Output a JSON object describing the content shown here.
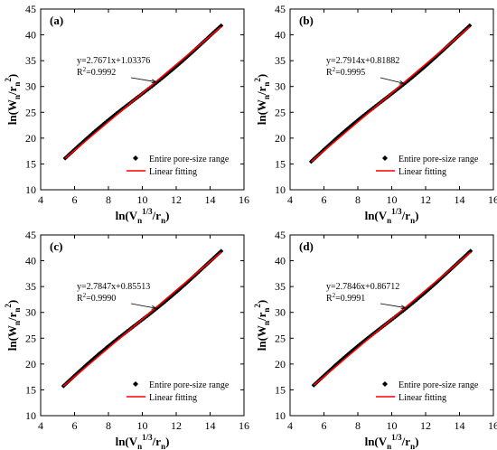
{
  "colors": {
    "fit_line": "#ff0000",
    "data_marker": "#000000",
    "axis": "#000000"
  },
  "chart_data": [
    {
      "type": "scatter",
      "panel_label": "(a)",
      "xlabel_main": "ln(V",
      "xlabel_sub": "n",
      "xlabel_sup": "1/3",
      "xlabel_tail": "/r",
      "xlabel_sub2": "n",
      "xlabel_end": ")",
      "ylabel_main": "ln(W",
      "ylabel_sub": "n",
      "ylabel_mid": "/r",
      "ylabel_sub2": "n",
      "ylabel_sup": "2",
      "ylabel_end": ")",
      "xlim": [
        4,
        16
      ],
      "ylim": [
        10,
        45
      ],
      "x_ticks": [
        4,
        6,
        8,
        10,
        12,
        14,
        16
      ],
      "y_ticks": [
        10,
        15,
        20,
        25,
        30,
        35,
        40,
        45
      ],
      "x_range": [
        5.45,
        14.65
      ],
      "slope": 2.7671,
      "intercept": 1.03376,
      "equation": "y=2.7671x+1.03376",
      "r2_prefix": "R",
      "r2_sup": "2",
      "r2_value": "=0.9992",
      "annotation_x": 10.8,
      "annotation_y": 30.9,
      "series": [
        {
          "name": "Entire pore-size range",
          "marker": "diamond"
        },
        {
          "name": "Linear fitting",
          "marker": "line"
        }
      ],
      "legend_position": "bottom-right"
    },
    {
      "type": "scatter",
      "panel_label": "(b)",
      "xlabel_main": "ln(V",
      "xlabel_sub": "n",
      "xlabel_sup": "1/3",
      "xlabel_tail": "/r",
      "xlabel_sub2": "n",
      "xlabel_end": ")",
      "ylabel_main": "ln(W",
      "ylabel_sub": "n",
      "ylabel_mid": "/r",
      "ylabel_sub2": "n",
      "ylabel_sup": "2",
      "ylabel_end": ")",
      "xlim": [
        4,
        16
      ],
      "ylim": [
        10,
        45
      ],
      "x_ticks": [
        4,
        6,
        8,
        10,
        12,
        14,
        16
      ],
      "y_ticks": [
        10,
        15,
        20,
        25,
        30,
        35,
        40,
        45
      ],
      "x_range": [
        5.25,
        14.6
      ],
      "slope": 2.7914,
      "intercept": 0.81882,
      "equation": "y=2.7914x+0.81882",
      "r2_prefix": "R",
      "r2_sup": "2",
      "r2_value": "=0.9995",
      "annotation_x": 10.7,
      "annotation_y": 30.6,
      "series": [
        {
          "name": "Entire pore-size range",
          "marker": "diamond"
        },
        {
          "name": "Linear fitting",
          "marker": "line"
        }
      ],
      "legend_position": "bottom-right"
    },
    {
      "type": "scatter",
      "panel_label": "(c)",
      "xlabel_main": "ln(V",
      "xlabel_sub": "n",
      "xlabel_sup": "1/3",
      "xlabel_tail": "/r",
      "xlabel_sub2": "n",
      "xlabel_end": ")",
      "ylabel_main": "ln(W",
      "ylabel_sub": "n",
      "ylabel_mid": "/r",
      "ylabel_sub2": "n",
      "ylabel_sup": "2",
      "ylabel_end": ")",
      "xlim": [
        4,
        16
      ],
      "ylim": [
        10,
        45
      ],
      "x_ticks": [
        4,
        6,
        8,
        10,
        12,
        14,
        16
      ],
      "y_ticks": [
        10,
        15,
        20,
        25,
        30,
        35,
        40,
        45
      ],
      "x_range": [
        5.35,
        14.65
      ],
      "slope": 2.7847,
      "intercept": 0.85513,
      "equation": "y=2.7847x+0.85513",
      "r2_prefix": "R",
      "r2_sup": "2",
      "r2_value": "=0.9990",
      "annotation_x": 10.8,
      "annotation_y": 30.8,
      "series": [
        {
          "name": "Entire pore-size range",
          "marker": "diamond"
        },
        {
          "name": "Linear fitting",
          "marker": "line"
        }
      ],
      "legend_position": "bottom-right"
    },
    {
      "type": "scatter",
      "panel_label": "(d)",
      "xlabel_main": "ln(V",
      "xlabel_sub": "n",
      "xlabel_sup": "1/3",
      "xlabel_tail": "/r",
      "xlabel_sub2": "n",
      "xlabel_end": ")",
      "ylabel_main": "ln(W",
      "ylabel_sub": "n",
      "ylabel_mid": "/r",
      "ylabel_sub2": "n",
      "ylabel_sup": "2",
      "ylabel_end": ")",
      "xlim": [
        4,
        16
      ],
      "ylim": [
        10,
        45
      ],
      "x_ticks": [
        4,
        6,
        8,
        10,
        12,
        14,
        16
      ],
      "y_ticks": [
        10,
        15,
        20,
        25,
        30,
        35,
        40,
        45
      ],
      "x_range": [
        5.4,
        14.65
      ],
      "slope": 2.7846,
      "intercept": 0.86712,
      "equation": "y=2.7846x+0.86712",
      "r2_prefix": "R",
      "r2_sup": "2",
      "r2_value": "=0.9991",
      "annotation_x": 10.8,
      "annotation_y": 30.9,
      "series": [
        {
          "name": "Entire pore-size range",
          "marker": "diamond"
        },
        {
          "name": "Linear fitting",
          "marker": "line"
        }
      ],
      "legend_position": "bottom-right"
    }
  ]
}
